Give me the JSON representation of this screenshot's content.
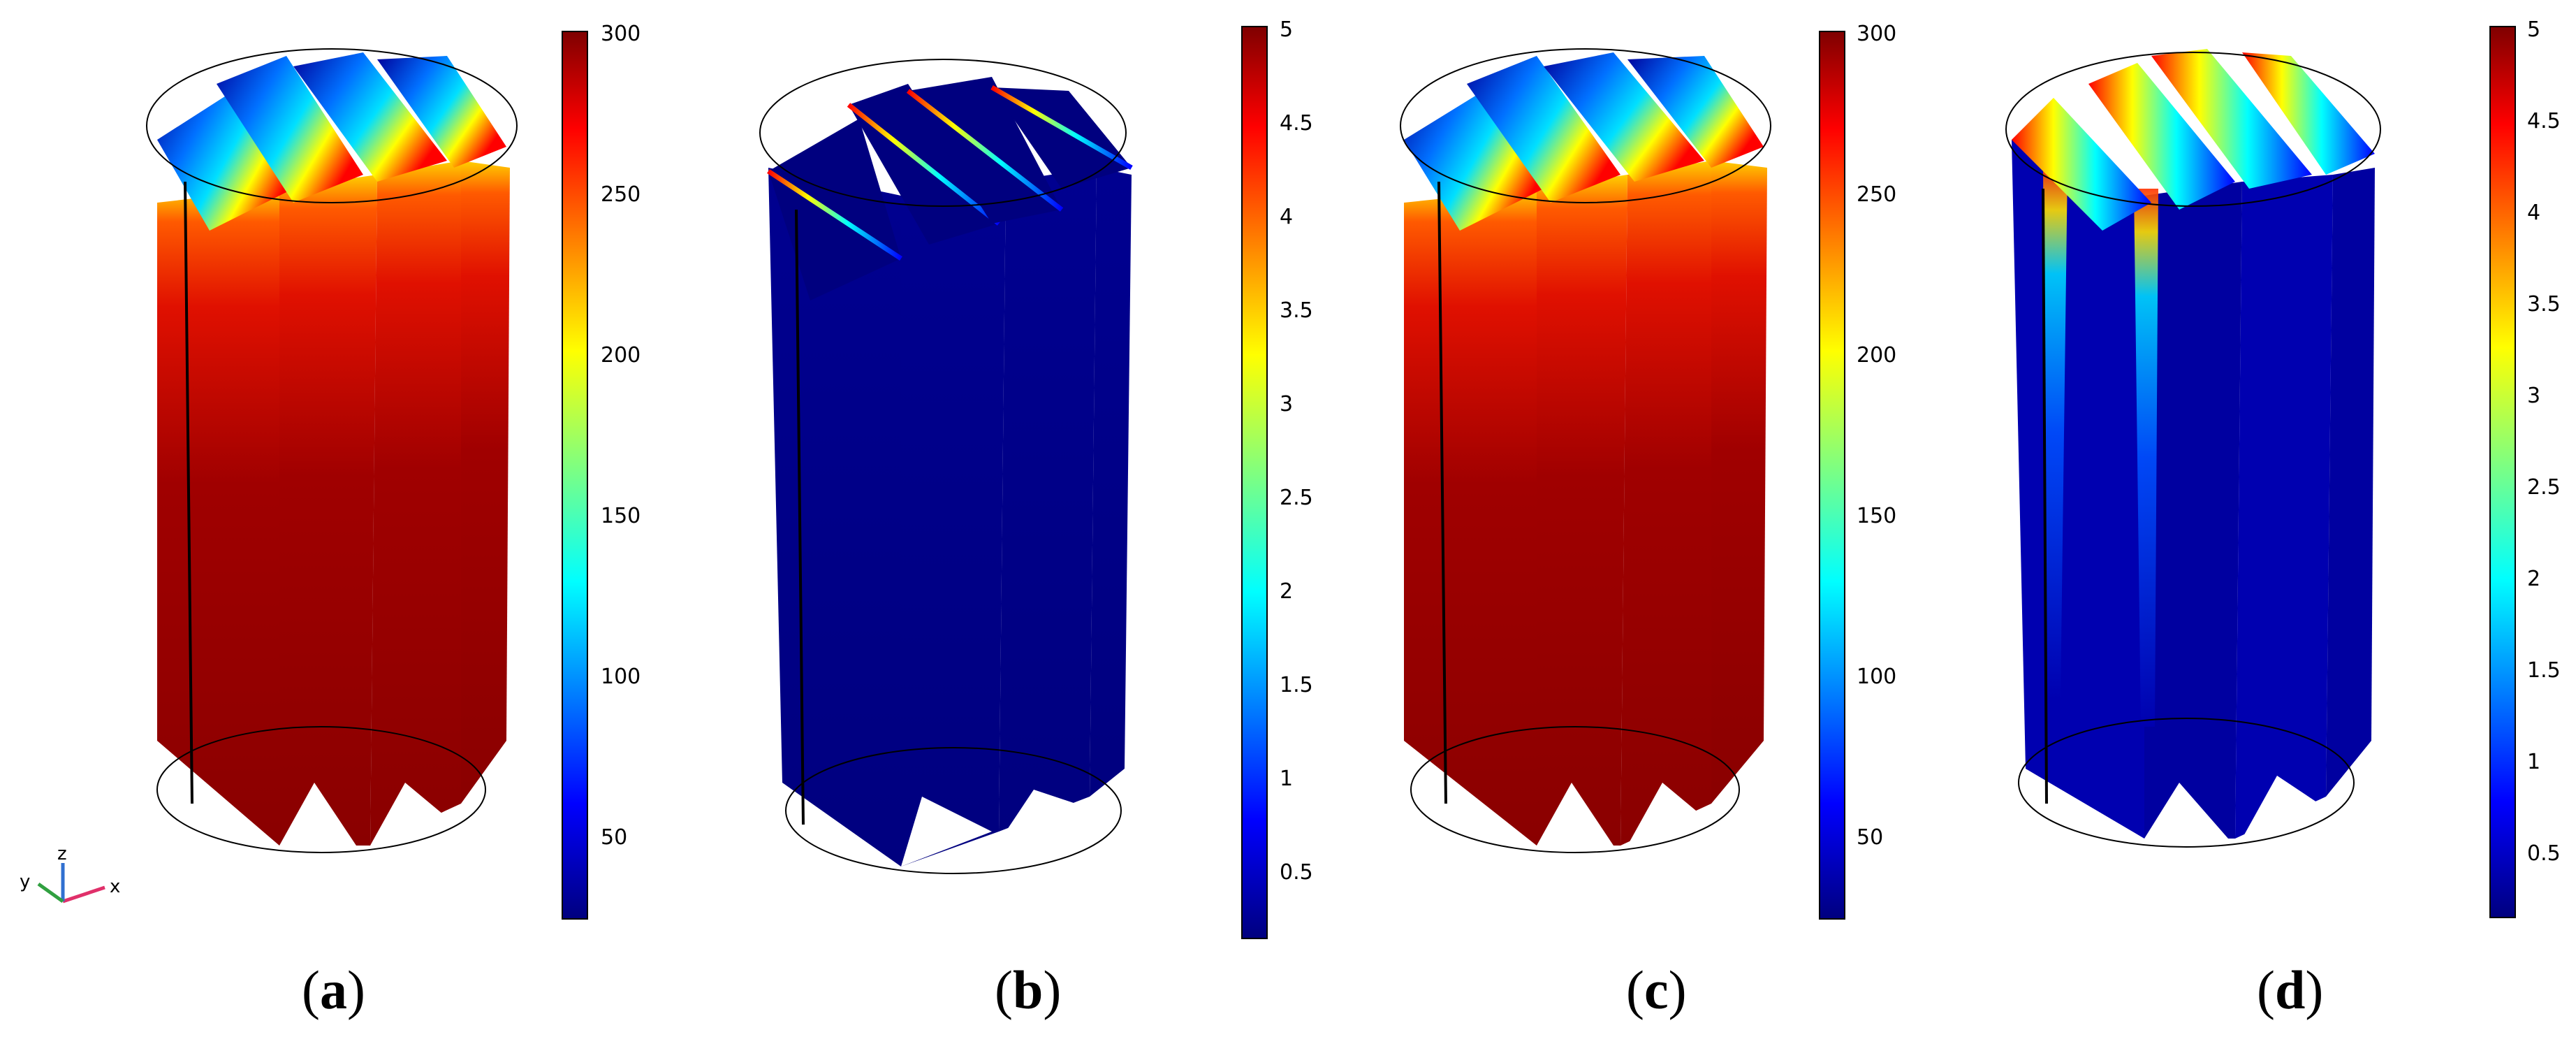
{
  "panels": [
    {
      "id": "a",
      "label": "a",
      "colorbar": {
        "max": "300",
        "ticks": [
          "300",
          "250",
          "200",
          "150",
          "100",
          "50"
        ]
      }
    },
    {
      "id": "b",
      "label": "b",
      "colorbar": {
        "max": "5",
        "ticks": [
          "5",
          "4.5",
          "4",
          "3.5",
          "3",
          "2.5",
          "2",
          "1.5",
          "1",
          "0.5"
        ]
      }
    },
    {
      "id": "c",
      "label": "c",
      "colorbar": {
        "max": "300",
        "ticks": [
          "300",
          "250",
          "200",
          "150",
          "100",
          "50"
        ]
      }
    },
    {
      "id": "d",
      "label": "d",
      "colorbar": {
        "max": "5",
        "ticks": [
          "5",
          "4.5",
          "4",
          "3.5",
          "3",
          "2.5",
          "2",
          "1.5",
          "1",
          "0.5"
        ]
      }
    }
  ],
  "axis_triad": {
    "x": "x",
    "y": "y",
    "z": "z"
  },
  "colormap": [
    "#00007f",
    "#0000ff",
    "#0080ff",
    "#00ffff",
    "#80ff80",
    "#ffff00",
    "#ff8000",
    "#ff0000",
    "#7f0000"
  ]
}
